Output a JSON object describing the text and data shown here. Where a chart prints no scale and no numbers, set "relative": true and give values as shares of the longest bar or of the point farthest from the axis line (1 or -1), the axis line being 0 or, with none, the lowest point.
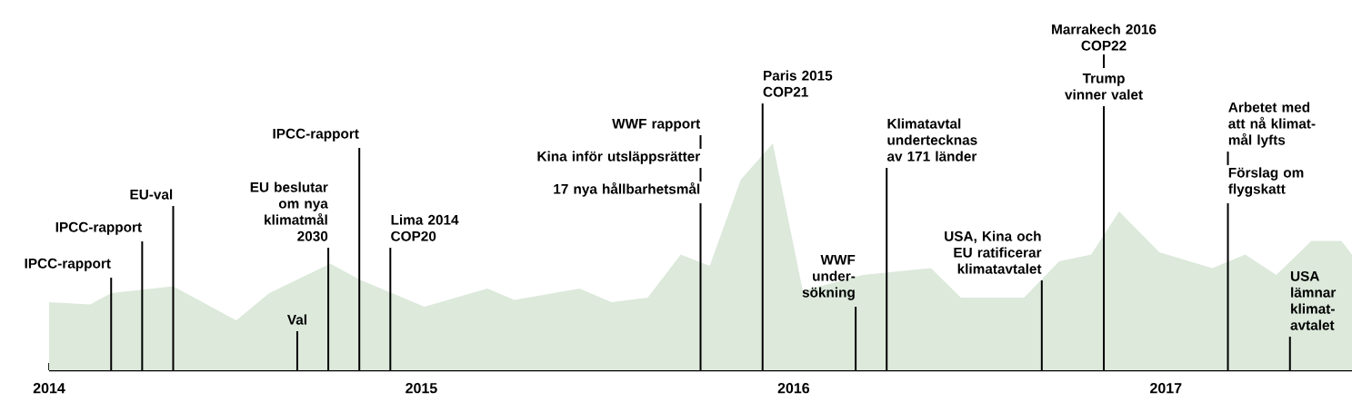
{
  "chart_data": {
    "type": "area",
    "relative": true,
    "color": "#dce9db",
    "x": [
      "2014-01-01",
      "2014-02-11",
      "2014-03-01",
      "2014-05-01",
      "2014-07-02",
      "2014-08-04",
      "2014-10-03",
      "2014-11-01",
      "2015-01-04",
      "2015-03-05",
      "2015-04-01",
      "2015-06-04",
      "2015-07-05",
      "2015-08-10",
      "2015-09-12",
      "2015-10-10",
      "2015-11-10",
      "2015-12-11",
      "2016-01-10",
      "2016-03-08",
      "2016-05-14",
      "2016-06-13",
      "2016-08-14",
      "2016-09-18",
      "2016-10-19",
      "2016-11-16",
      "2016-12-25",
      "2017-02-16",
      "2017-03-18",
      "2017-04-18",
      "2017-05-22",
      "2017-06-21",
      "2017-07-01"
    ],
    "values": [
      0.3,
      0.29,
      0.34,
      0.37,
      0.22,
      0.34,
      0.47,
      0.4,
      0.28,
      0.36,
      0.31,
      0.36,
      0.3,
      0.32,
      0.51,
      0.46,
      0.84,
      1.0,
      0.35,
      0.42,
      0.45,
      0.32,
      0.32,
      0.48,
      0.51,
      0.7,
      0.52,
      0.45,
      0.51,
      0.42,
      0.57,
      0.57,
      0.51
    ],
    "xlim": [
      "2014-01",
      "2017-07"
    ],
    "xticks": [
      "2014",
      {
        "value": "2014-02",
        "label": null
      },
      {
        "value": "2014-03",
        "label": null
      },
      {
        "value": "2014-04",
        "label": null
      },
      {
        "value": "2014-05",
        "label": null
      },
      {
        "value": "2014-06",
        "label": null
      },
      {
        "value": "2014-07",
        "label": null
      },
      {
        "value": "2014-08",
        "label": null
      },
      {
        "value": "2014-09",
        "label": null
      },
      {
        "value": "2014-10",
        "label": null
      },
      {
        "value": "2014-11",
        "label": null
      },
      {
        "value": "2014-12",
        "label": null
      },
      "2015",
      {
        "value": "2015-02",
        "label": null
      },
      {
        "value": "2015-03",
        "label": null
      },
      {
        "value": "2015-04",
        "label": null
      },
      {
        "value": "2015-05",
        "label": null
      },
      {
        "value": "2015-06",
        "label": null
      },
      {
        "value": "2015-07",
        "label": null
      },
      {
        "value": "2015-08",
        "label": null
      },
      {
        "value": "2015-09",
        "label": null
      },
      {
        "value": "2015-10",
        "label": null
      },
      {
        "value": "2015-11",
        "label": null
      },
      {
        "value": "2015-12",
        "label": null
      },
      "2016",
      {
        "value": "2016-02",
        "label": null
      },
      {
        "value": "2016-03",
        "label": null
      },
      {
        "value": "2016-04",
        "label": null
      },
      {
        "value": "2016-05",
        "label": null
      },
      {
        "value": "2016-06",
        "label": null
      },
      {
        "value": "2016-07",
        "label": null
      },
      {
        "value": "2016-08",
        "label": null
      },
      {
        "value": "2016-09",
        "label": null
      },
      {
        "value": "2016-10",
        "label": null
      },
      {
        "value": "2016-11",
        "label": null
      },
      {
        "value": "2016-12",
        "label": null
      },
      "2017",
      {
        "value": "2017-02",
        "label": null
      },
      {
        "value": "2017-03",
        "label": null
      },
      {
        "value": "2017-04",
        "label": null
      },
      {
        "value": "2017-05",
        "label": null
      },
      {
        "value": "2017-06",
        "label": null
      }
    ],
    "ref_lines": [
      {
        "axis": "x",
        "value": "2014-03",
        "label": "IPCC-rapport"
      },
      {
        "axis": "x",
        "value": "2014-04",
        "label": "IPCC-rapport"
      },
      {
        "axis": "x",
        "value": "2014-05",
        "label": "EU-val"
      },
      {
        "axis": "x",
        "value": "2014-09",
        "label": "Val"
      },
      {
        "axis": "x",
        "value": "2014-10",
        "label": "EU beslutar\nom nya\nklimatmål\n2030"
      },
      {
        "axis": "x",
        "value": "2014-11",
        "label": "IPCC-rapport"
      },
      {
        "axis": "x",
        "value": "2014-12",
        "label": "Lima 2014\nCOP20"
      },
      {
        "axis": "x",
        "value": "2015-10",
        "label": "WWF rapport\n\nKina inför utsläppsrätter\n\n17 nya hållbarhetsmål"
      },
      {
        "axis": "x",
        "value": "2015-12",
        "label": "Paris 2015\nCOP21"
      },
      {
        "axis": "x",
        "value": "2016-03",
        "label": "WWF\nunder-\nsökning"
      },
      {
        "axis": "x",
        "value": "2016-04",
        "label": "Klimatavtal\nundertecknas\nav 171 länder"
      },
      {
        "axis": "x",
        "value": "2016-09",
        "label": "USA, Kina och\nEU ratificerar\nklimatavtalet"
      },
      {
        "axis": "x",
        "value": "2016-11",
        "label": "Marrakech 2016\nCOP22\n\nTrump\nvinner valet"
      },
      {
        "axis": "x",
        "value": "2017-03",
        "label": "Arbetet med\natt nå klimat-\nmål lyfts\n\nFörslag om\nflygskatt"
      },
      {
        "axis": "x",
        "value": "2017-05",
        "label": "USA\nlämnar\nklimat-\navtalet"
      }
    ]
  }
}
